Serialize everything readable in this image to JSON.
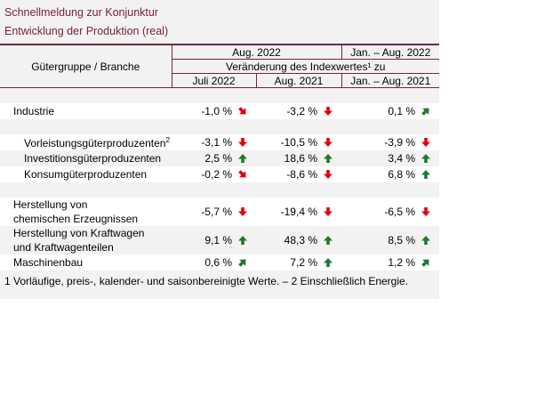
{
  "title_line1": "Schnellmeldung zur Konjunktur",
  "title_line2": "Entwicklung der Produktion (real)",
  "header": {
    "category": "Gütergruppe / Branche",
    "period_aug": "Aug. 2022",
    "period_jan": "Jan. – Aug. 2022",
    "change_label": "Veränderung des Indexwertes¹ zu",
    "col1": "Juli 2022",
    "col2": "Aug. 2021",
    "col3": "Jan. – Aug. 2021"
  },
  "rows": [
    {
      "label": "Industrie",
      "v1": "-1,0 %",
      "a1": "down-right",
      "v2": "-3,2 %",
      "a2": "down",
      "v3": "0,1 %",
      "a3": "up-right"
    },
    {
      "label": "Vorleistungsgüterproduzenten",
      "sup": "2",
      "v1": "-3,1 %",
      "a1": "down",
      "v2": "-10,5 %",
      "a2": "down",
      "v3": "-3,9 %",
      "a3": "down"
    },
    {
      "label": "Investitionsgüterproduzenten",
      "v1": "2,5 %",
      "a1": "up",
      "v2": "18,6 %",
      "a2": "up",
      "v3": "3,4 %",
      "a3": "up"
    },
    {
      "label": "Konsumgüterproduzenten",
      "v1": "-0,2 %",
      "a1": "down-right",
      "v2": "-8,6 %",
      "a2": "down",
      "v3": "6,8 %",
      "a3": "up"
    },
    {
      "label_l1": "Herstellung von",
      "label_l2": "chemischen Erzeugnissen",
      "v1": "-5,7 %",
      "a1": "down",
      "v2": "-19,4 %",
      "a2": "down",
      "v3": "-6,5 %",
      "a3": "down"
    },
    {
      "label_l1": "Herstellung von Kraftwagen",
      "label_l2": "und Kraftwagenteilen",
      "v1": "9,1 %",
      "a1": "up",
      "v2": "48,3 %",
      "a2": "up",
      "v3": "8,5 %",
      "a3": "up"
    },
    {
      "label": "Maschinenbau",
      "v1": "0,6 %",
      "a1": "up-right",
      "v2": "7,2 %",
      "a2": "up",
      "v3": "1,2 %",
      "a3": "up-right"
    }
  ],
  "footnote": "1 Vorläufige, preis-, kalender- und saisonbereinigte Werte. – 2 Einschließlich Energie.",
  "colors": {
    "accent": "#7b2335",
    "arrow_red": "#e3000f",
    "arrow_green": "#1f7a2e",
    "background": "#f2f2f2"
  }
}
